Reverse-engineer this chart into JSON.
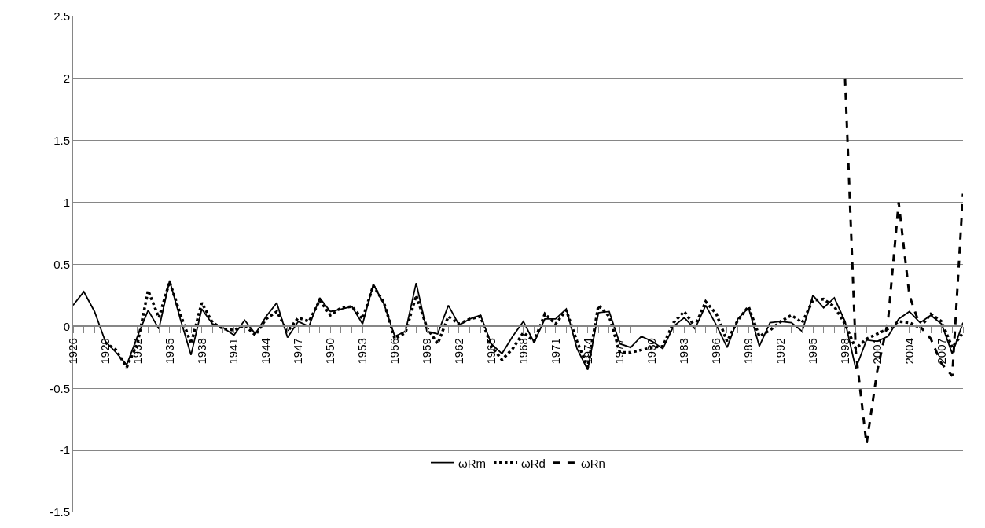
{
  "chart_data": {
    "type": "line",
    "categories": [
      "1926",
      null,
      null,
      "1929",
      null,
      null,
      "1932",
      null,
      null,
      "1935",
      null,
      null,
      "1938",
      null,
      null,
      "1941",
      null,
      null,
      "1944",
      null,
      null,
      "1947",
      null,
      null,
      "1950",
      null,
      null,
      "1953",
      null,
      null,
      "1956",
      null,
      null,
      "1959",
      null,
      null,
      "1962",
      null,
      null,
      "1965",
      null,
      null,
      "1968",
      null,
      null,
      "1971",
      null,
      null,
      "1974",
      null,
      null,
      "1977",
      null,
      null,
      "1980",
      null,
      null,
      "1983",
      null,
      null,
      "1986",
      null,
      null,
      "1989",
      null,
      null,
      "1992",
      null,
      null,
      "1995",
      null,
      null,
      "1998",
      null,
      null,
      "2001",
      null,
      null,
      "2004",
      null,
      null,
      "2007",
      null,
      null
    ],
    "series": [
      {
        "name": "ωRm",
        "color": "#000000",
        "line_style": "solid",
        "values": [
          0.17,
          0.28,
          0.12,
          -0.12,
          -0.21,
          -0.31,
          -0.08,
          0.13,
          -0.02,
          0.37,
          0.06,
          -0.23,
          0.14,
          0.02,
          -0.01,
          -0.07,
          0.05,
          -0.06,
          0.08,
          0.19,
          -0.09,
          0.04,
          0.0,
          0.23,
          0.12,
          0.14,
          0.16,
          0.02,
          0.34,
          0.18,
          -0.08,
          -0.04,
          0.35,
          -0.04,
          -0.06,
          0.17,
          0.01,
          0.06,
          0.09,
          -0.14,
          -0.22,
          -0.08,
          0.04,
          -0.13,
          0.06,
          0.06,
          0.14,
          -0.18,
          -0.35,
          0.11,
          0.12,
          -0.14,
          -0.17,
          -0.08,
          -0.12,
          -0.18,
          0.0,
          0.07,
          -0.02,
          0.17,
          0.01,
          -0.17,
          0.06,
          0.15,
          -0.16,
          0.03,
          0.04,
          0.03,
          -0.04,
          0.25,
          0.15,
          0.23,
          0.04,
          -0.34,
          -0.11,
          -0.12,
          -0.08,
          0.06,
          0.12,
          0.03,
          0.09,
          0.02,
          -0.22,
          0.03
        ]
      },
      {
        "name": "ωRd",
        "color": "#000000",
        "line_style": "dotted",
        "values": [
          null,
          null,
          null,
          -0.13,
          -0.19,
          -0.33,
          -0.14,
          0.29,
          0.07,
          0.36,
          0.1,
          -0.14,
          0.19,
          0.03,
          -0.02,
          -0.03,
          0.01,
          -0.07,
          0.06,
          0.12,
          -0.04,
          0.07,
          0.04,
          0.21,
          0.09,
          0.15,
          0.16,
          0.06,
          0.33,
          0.19,
          -0.1,
          -0.05,
          0.25,
          -0.01,
          -0.14,
          0.08,
          0.02,
          0.06,
          0.08,
          -0.16,
          -0.27,
          -0.18,
          -0.05,
          -0.12,
          0.1,
          0.02,
          0.13,
          -0.12,
          -0.33,
          0.17,
          0.08,
          -0.21,
          -0.21,
          -0.19,
          -0.17,
          -0.16,
          0.03,
          0.12,
          0.0,
          0.2,
          0.1,
          -0.12,
          0.05,
          0.16,
          -0.08,
          -0.03,
          0.04,
          0.09,
          0.03,
          0.21,
          0.22,
          0.16,
          0.02,
          -0.18,
          -0.1,
          -0.06,
          -0.02,
          0.04,
          0.03,
          -0.01,
          0.1,
          0.04,
          -0.17,
          -0.05
        ]
      },
      {
        "name": "ωRn",
        "color": "#000000",
        "line_style": "dashed",
        "values": [
          null,
          null,
          null,
          null,
          null,
          null,
          null,
          null,
          null,
          null,
          null,
          null,
          null,
          null,
          null,
          null,
          null,
          null,
          null,
          null,
          null,
          null,
          null,
          null,
          null,
          null,
          null,
          null,
          null,
          null,
          null,
          null,
          null,
          null,
          null,
          null,
          null,
          null,
          null,
          null,
          null,
          null,
          null,
          null,
          null,
          null,
          null,
          null,
          null,
          null,
          null,
          null,
          null,
          null,
          null,
          null,
          null,
          null,
          null,
          null,
          null,
          null,
          null,
          null,
          null,
          null,
          null,
          null,
          null,
          null,
          null,
          null,
          2.0,
          -0.2,
          -0.95,
          -0.36,
          0.04,
          1.0,
          0.25,
          0.0,
          -0.1,
          -0.3,
          -0.4,
          1.07
        ]
      }
    ],
    "ylim": [
      -1.5,
      2.5
    ],
    "yticks": [
      -1.5,
      -1,
      -0.5,
      0,
      0.5,
      1,
      1.5,
      2,
      2.5
    ],
    "grid": "y",
    "legend": "bottom",
    "marker": "none"
  }
}
